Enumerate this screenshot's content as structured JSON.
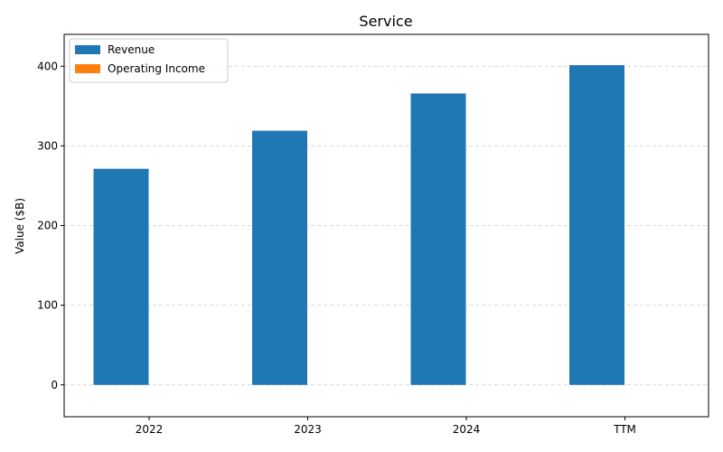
{
  "chart_data": {
    "type": "bar",
    "title": "Service",
    "xlabel": "",
    "ylabel": "Value ($B)",
    "categories": [
      "2022",
      "2023",
      "2024",
      "TTM"
    ],
    "series": [
      {
        "name": "Revenue",
        "values": [
          271.3,
          319.0,
          365.8,
          401.3
        ],
        "color": "#1f77b4"
      },
      {
        "name": "Operating Income",
        "values": [
          0,
          0,
          0,
          0
        ],
        "color": "#ff7f0e"
      }
    ],
    "ylim": [
      -40,
      440
    ],
    "yticks": [
      0,
      100,
      200,
      300,
      400
    ],
    "grid": "y-dashed",
    "legend_position": "top-left"
  }
}
